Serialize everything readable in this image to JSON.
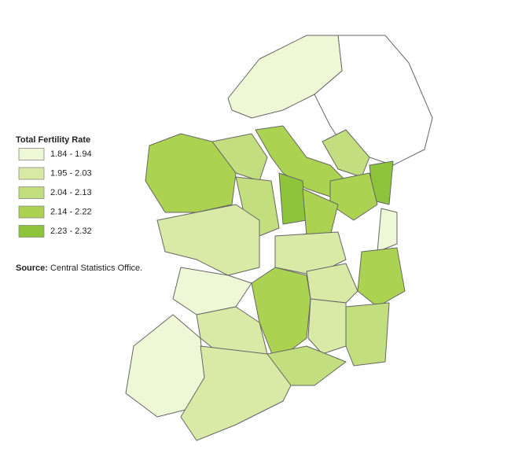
{
  "legend": {
    "title": "Total Fertility Rate",
    "items": [
      {
        "label": "1.84 - 1.94",
        "color": "#eef7d6"
      },
      {
        "label": "1.95 - 2.03",
        "color": "#d9eaa7"
      },
      {
        "label": "2.04 - 2.13",
        "color": "#c3de7f"
      },
      {
        "label": "2.14 - 2.22",
        "color": "#acd252"
      },
      {
        "label": "2.23 - 2.32",
        "color": "#8dc43c"
      }
    ]
  },
  "source": {
    "prefix": "Source:",
    "text": "Central Statistics Office."
  }
}
